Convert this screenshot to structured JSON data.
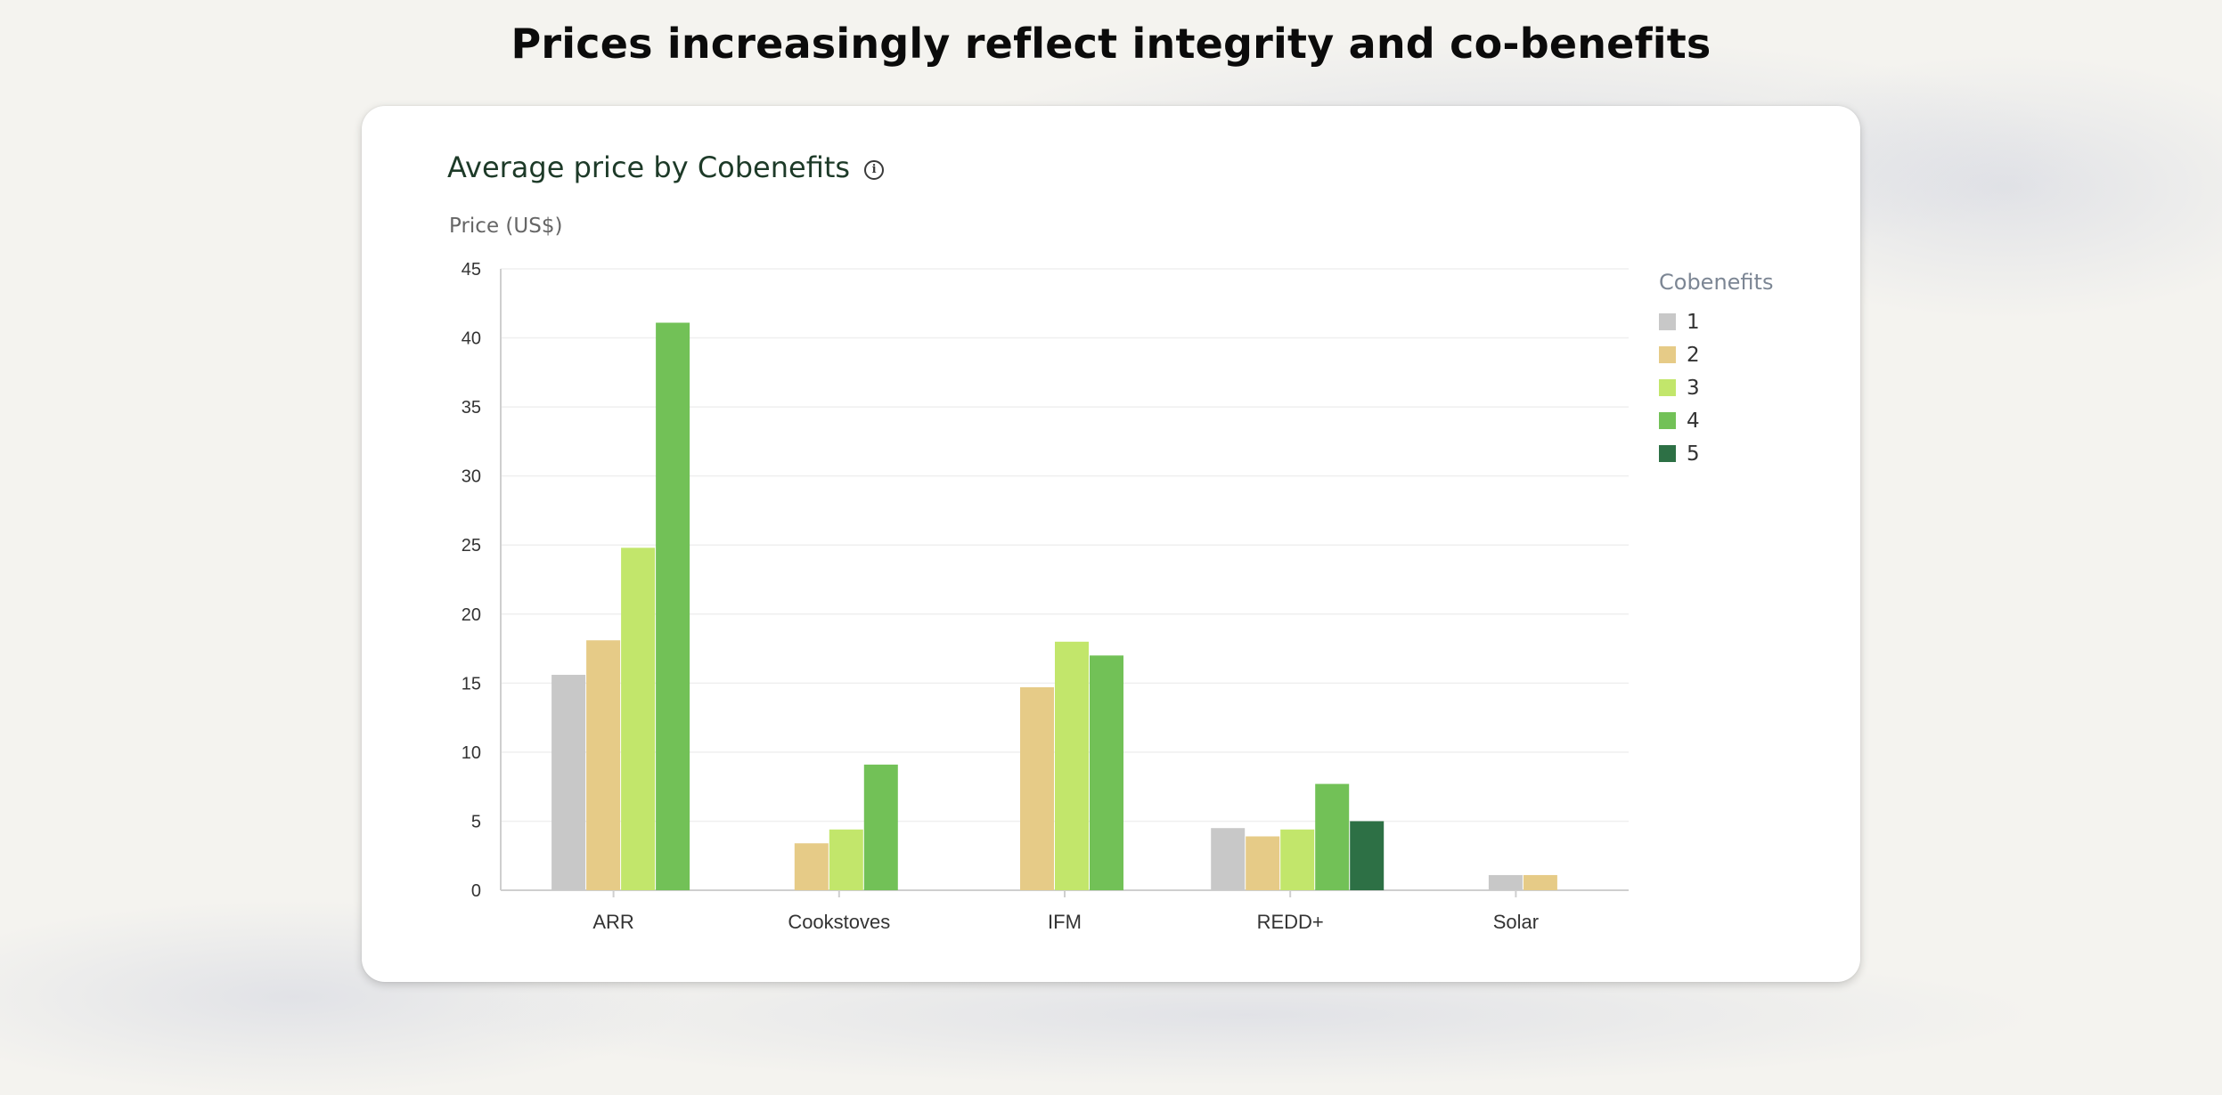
{
  "headline": "Prices increasingly reflect integrity and co-benefits",
  "card": {
    "info_icon": "info-icon"
  },
  "chart_data": {
    "type": "bar",
    "title": "Average price by Cobenefits",
    "ylabel": "Price (US$)",
    "xlabel": "",
    "ylim": [
      0,
      45
    ],
    "yticks": [
      0,
      5,
      10,
      15,
      20,
      25,
      30,
      35,
      40,
      45
    ],
    "grid": true,
    "legend_title": "Cobenefits",
    "legend_position": "right",
    "categories": [
      "ARR",
      "Cookstoves",
      "IFM",
      "REDD+",
      "Solar"
    ],
    "series": [
      {
        "name": "1",
        "color": "#c8c8c8",
        "values": [
          15.6,
          null,
          null,
          4.5,
          1.1
        ]
      },
      {
        "name": "2",
        "color": "#e6cb87",
        "values": [
          18.1,
          3.4,
          14.7,
          3.9,
          1.1
        ]
      },
      {
        "name": "3",
        "color": "#c2e66b",
        "values": [
          24.8,
          4.4,
          18.0,
          4.4,
          null
        ]
      },
      {
        "name": "4",
        "color": "#72c157",
        "values": [
          41.1,
          9.1,
          17.0,
          7.7,
          null
        ]
      },
      {
        "name": "5",
        "color": "#2d7045",
        "values": [
          null,
          null,
          null,
          5.0,
          null
        ]
      }
    ]
  }
}
